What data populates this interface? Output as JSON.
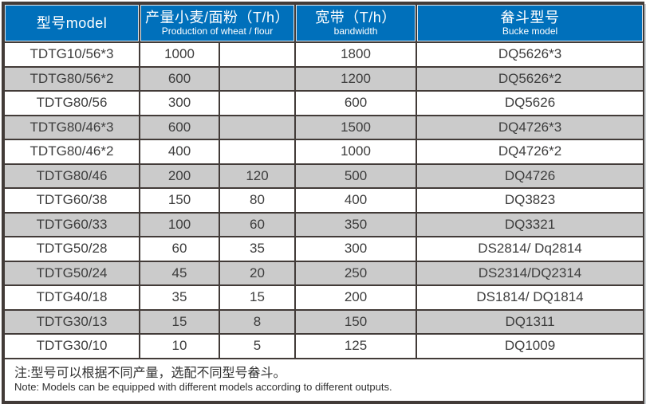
{
  "colors": {
    "header_bg": "#0070bb",
    "row_alt_bg": "#cbcbcb",
    "grid_line": "#423b38",
    "header_text": "#ffffff",
    "body_text": "#3d3d3d"
  },
  "table": {
    "header": {
      "model": {
        "zh": "型号model",
        "en": ""
      },
      "production": {
        "zh": "产量小麦/面粉（T/h）",
        "en": "Production of wheat / flour"
      },
      "bandwidth": {
        "zh": "宽带（T/h）",
        "en": "bandwidth"
      },
      "bucket": {
        "zh": "畚斗型号",
        "en": "Bucke model"
      }
    },
    "rows": [
      {
        "model": "TDTG10/56*3",
        "wheat": "1000",
        "flour": "",
        "bandwidth": "1800",
        "bucket": "DQ5626*3"
      },
      {
        "model": "TDTG80/56*2",
        "wheat": "600",
        "flour": "",
        "bandwidth": "1200",
        "bucket": "DQ5626*2"
      },
      {
        "model": "TDTG80/56",
        "wheat": "300",
        "flour": "",
        "bandwidth": "600",
        "bucket": "DQ5626"
      },
      {
        "model": "TDTG80/46*3",
        "wheat": "600",
        "flour": "",
        "bandwidth": "1500",
        "bucket": "DQ4726*3"
      },
      {
        "model": "TDTG80/46*2",
        "wheat": "400",
        "flour": "",
        "bandwidth": "1000",
        "bucket": "DQ4726*2"
      },
      {
        "model": "TDTG80/46",
        "wheat": "200",
        "flour": "120",
        "bandwidth": "500",
        "bucket": "DQ4726"
      },
      {
        "model": "TDTG60/38",
        "wheat": "150",
        "flour": "80",
        "bandwidth": "400",
        "bucket": "DQ3823"
      },
      {
        "model": "TDTG60/33",
        "wheat": "100",
        "flour": "60",
        "bandwidth": "350",
        "bucket": "DQ3321"
      },
      {
        "model": "TDTG50/28",
        "wheat": "60",
        "flour": "35",
        "bandwidth": "300",
        "bucket": "DS2814/ Dq2814"
      },
      {
        "model": "TDTG50/24",
        "wheat": "45",
        "flour": "20",
        "bandwidth": "250",
        "bucket": "DS2314/DQ2314"
      },
      {
        "model": "TDTG40/18",
        "wheat": "35",
        "flour": "15",
        "bandwidth": "200",
        "bucket": "DS1814/ DQ1814"
      },
      {
        "model": "TDTG30/13",
        "wheat": "15",
        "flour": "8",
        "bandwidth": "150",
        "bucket": "DQ1311"
      },
      {
        "model": "TDTG30/10",
        "wheat": "10",
        "flour": "5",
        "bandwidth": "125",
        "bucket": "DQ1009"
      }
    ],
    "note": {
      "zh": "注:型号可以根据不同产量，选配不同型号畚斗。",
      "en": "Note: Models can be equipped with different models according to different outputs."
    }
  }
}
